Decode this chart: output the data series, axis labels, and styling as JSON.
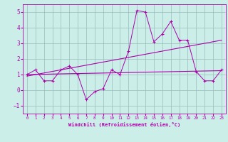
{
  "x": [
    0,
    1,
    2,
    3,
    4,
    5,
    6,
    7,
    8,
    9,
    10,
    11,
    12,
    13,
    14,
    15,
    16,
    17,
    18,
    19,
    20,
    21,
    22,
    23
  ],
  "line1": [
    1.0,
    1.3,
    0.6,
    0.6,
    1.3,
    1.55,
    1.0,
    -0.6,
    -0.1,
    0.1,
    1.3,
    1.0,
    2.5,
    5.1,
    5.0,
    3.1,
    3.6,
    4.4,
    3.2,
    3.2,
    1.2,
    0.6,
    0.6,
    1.3
  ],
  "line2_x": [
    0,
    23
  ],
  "line2_y": [
    1.0,
    1.25
  ],
  "line3_x": [
    0,
    23
  ],
  "line3_y": [
    0.9,
    3.2
  ],
  "line_color": "#aa00aa",
  "bg_color": "#cceee8",
  "grid_color": "#99bbbb",
  "xlabel": "Windchill (Refroidissement éolien,°C)",
  "xlim": [
    -0.5,
    23.5
  ],
  "ylim": [
    -1.5,
    5.5
  ],
  "yticks": [
    -1,
    0,
    1,
    2,
    3,
    4,
    5
  ],
  "xticks": [
    0,
    1,
    2,
    3,
    4,
    5,
    6,
    7,
    8,
    9,
    10,
    11,
    12,
    13,
    14,
    15,
    16,
    17,
    18,
    19,
    20,
    21,
    22,
    23
  ]
}
